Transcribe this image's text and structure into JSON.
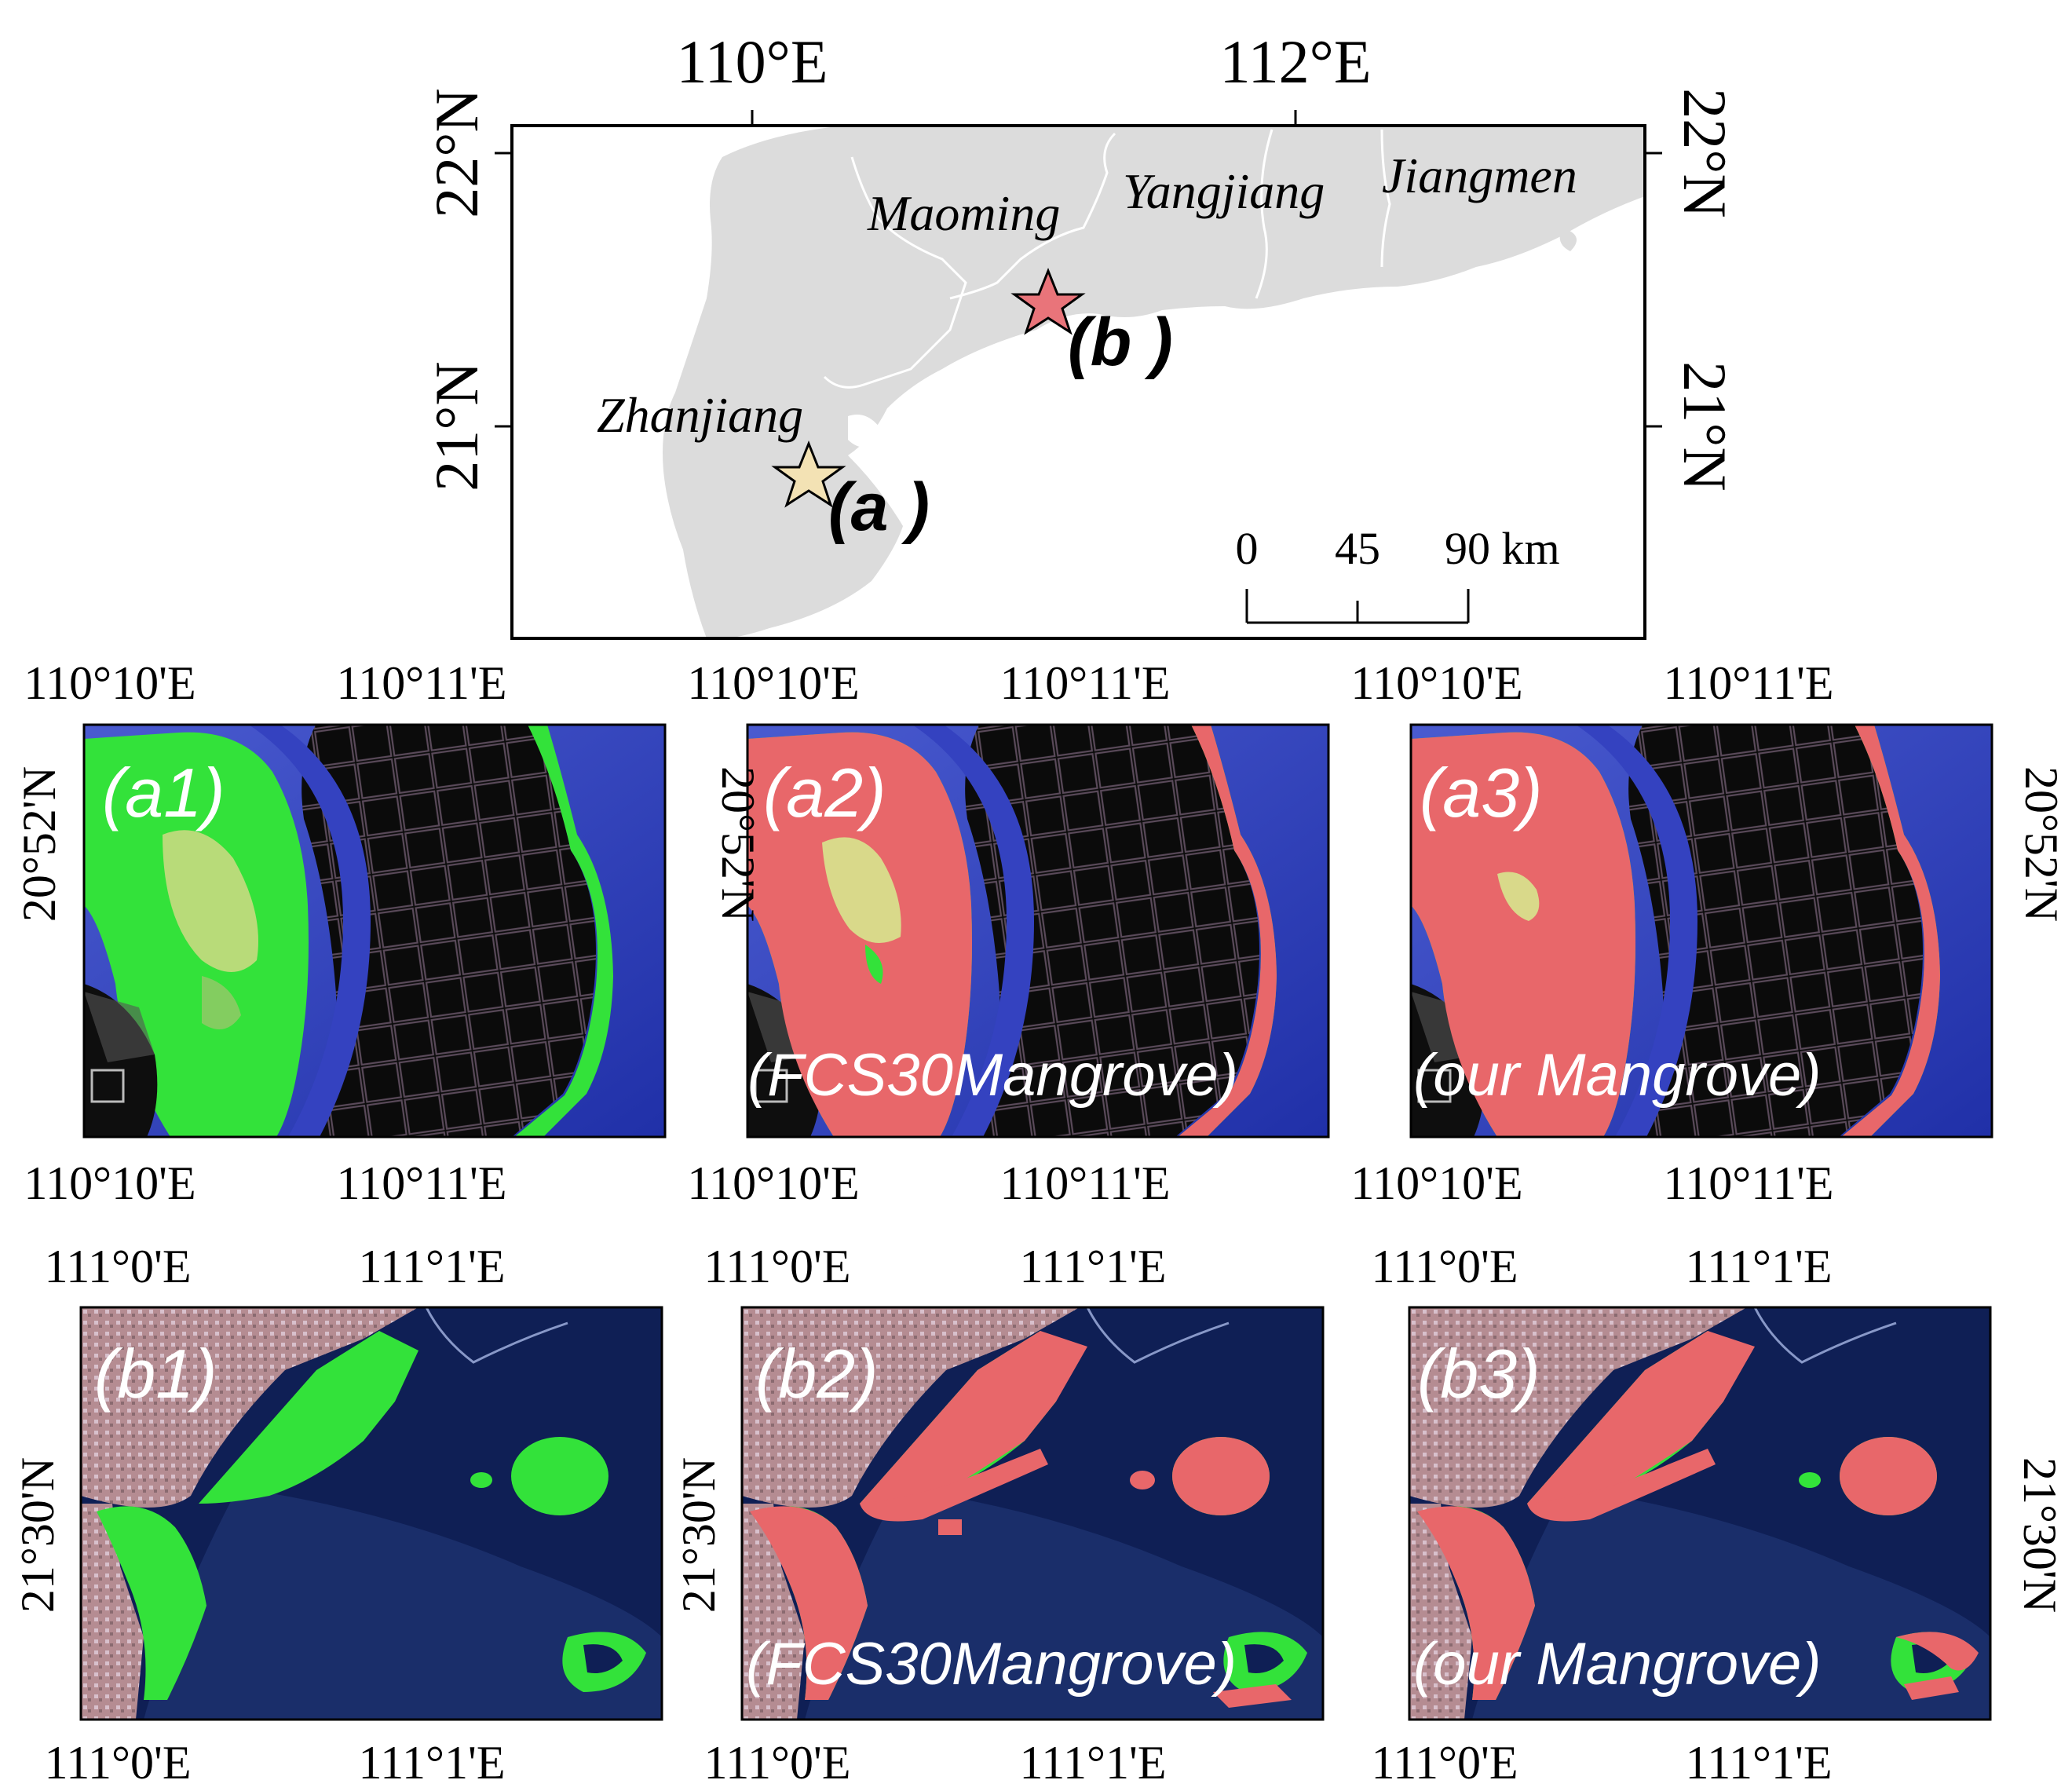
{
  "overview": {
    "lon_labels": [
      "110°E",
      "112°E"
    ],
    "lat_labels": [
      "22°N",
      "21°N"
    ],
    "cities": [
      "Maoming",
      "Yangjiang",
      "Jiangmen",
      "Zhanjiang"
    ],
    "site_a_label": "(a )",
    "site_b_label": "(b )",
    "scalebar": {
      "ticks": [
        "0",
        "45",
        "90 km"
      ]
    },
    "colors": {
      "land": "#dcdcdc",
      "site_a_star": "#f3e2b4",
      "site_b_star": "#e9747a",
      "border": "#ffffff"
    }
  },
  "row_a": {
    "top_lon": [
      "110°10'E",
      "110°11'E"
    ],
    "bottom_lon": [
      "110°10'E",
      "110°11'E"
    ],
    "lat": "20°52'N",
    "panels": [
      {
        "label": "(a1)",
        "caption": ""
      },
      {
        "label": "(a2)",
        "caption": "(FCS30Mangrove)"
      },
      {
        "label": "(a3)",
        "caption": "(our Mangrove)"
      }
    ]
  },
  "row_b": {
    "top_lon": [
      "111°0'E",
      "111°1'E"
    ],
    "bottom_lon": [
      "111°0'E",
      "111°1'E"
    ],
    "lat": "21°30'N",
    "panels": [
      {
        "label": "(b1)",
        "caption": ""
      },
      {
        "label": "(b2)",
        "caption": "(FCS30Mangrove)"
      },
      {
        "label": "(b3)",
        "caption": "(our Mangrove)"
      }
    ]
  },
  "colors": {
    "mangrove_green": "#33e23a",
    "mangrove_red": "#e8676a",
    "water": "#2c3bb3",
    "ponds": "#101010"
  }
}
